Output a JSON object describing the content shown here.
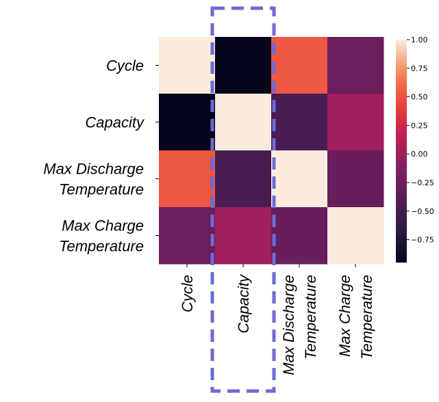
{
  "chart_data": {
    "type": "heatmap",
    "rows": [
      [
        "Cycle"
      ],
      [
        "Capacity"
      ],
      [
        "Max Discharge",
        "Temperature"
      ],
      [
        "Max Charge",
        "Temperature"
      ]
    ],
    "columns": [
      [
        "Cycle"
      ],
      [
        "Capacity"
      ],
      [
        "Max Discharge",
        "Temperature"
      ],
      [
        "Max Charge",
        "Temperature"
      ]
    ],
    "values": [
      [
        1.0,
        -0.95,
        0.52,
        -0.25
      ],
      [
        -0.95,
        1.0,
        -0.48,
        0.02
      ],
      [
        0.52,
        -0.48,
        1.0,
        -0.28
      ],
      [
        -0.25,
        0.02,
        -0.28,
        1.0
      ]
    ],
    "colorbar": {
      "range": [
        -0.95,
        1.0
      ],
      "ticks": [
        "1.00",
        "0.75",
        "0.50",
        "0.25",
        "0.00",
        "−0.25",
        "−0.50",
        "−0.75"
      ]
    },
    "highlight": {
      "column": 1,
      "style": "dashed",
      "color": "#6b6bd6"
    }
  }
}
